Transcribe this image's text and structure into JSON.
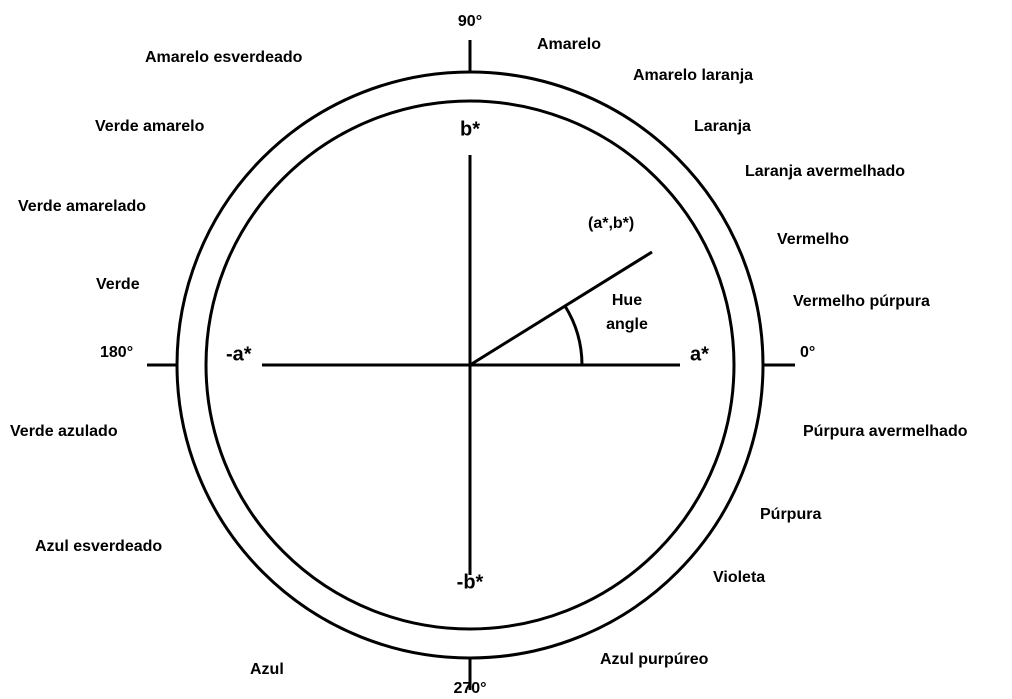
{
  "degrees": {
    "top": "90°",
    "left": "180°",
    "right": "0°",
    "bottom": "270°"
  },
  "axes": {
    "b": "b*",
    "neg_b": "-b*",
    "a": "a*",
    "neg_a": "-a*"
  },
  "point": "(a*,b*)",
  "angle_label": [
    "Hue",
    "angle"
  ],
  "hues": [
    "Amarelo",
    "Amarelo laranja",
    "Laranja",
    "Laranja avermelhado",
    "Vermelho",
    "Vermelho púrpura",
    "Púrpura avermelhado",
    "Púrpura",
    "Violeta",
    "Azul purpúreo",
    "Azul",
    "Azul esverdeado",
    "Verde azulado",
    "Verde",
    "Verde amarelado",
    "Verde amarelo",
    "Amarelo esverdeado"
  ]
}
